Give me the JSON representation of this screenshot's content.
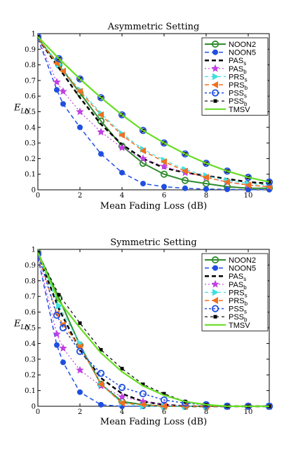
{
  "chart_data": [
    {
      "type": "line",
      "title": "Asymmetric Setting",
      "xlabel": "Mean Fading Loss (dB)",
      "ylabel": "E",
      "ylabel_sub": "LN",
      "xlim": [
        0,
        11
      ],
      "ylim": [
        0,
        1
      ],
      "xticks": [
        "0",
        "2",
        "4",
        "6",
        "8",
        "10"
      ],
      "yticks": [
        "0",
        "0.1",
        "0.2",
        "0.3",
        "0.4",
        "0.5",
        "0.6",
        "0.7",
        "0.8",
        "0.9",
        "1"
      ],
      "legend_position": "top-right",
      "series": [
        {
          "name": "NOON2",
          "sub": "",
          "color": "#2e8b2e",
          "dash": "",
          "marker": "circle",
          "fill": false,
          "width": 2,
          "x": [
            0,
            1,
            2,
            3,
            4,
            5,
            6,
            7,
            8,
            9,
            10,
            11
          ],
          "values": [
            0.97,
            0.8,
            0.62,
            0.44,
            0.28,
            0.17,
            0.1,
            0.06,
            0.04,
            0.02,
            0.01,
            0.01
          ]
        },
        {
          "name": "NOON5",
          "sub": "",
          "color": "#1f4fe0",
          "dash": "6,4",
          "marker": "dot",
          "fill": true,
          "width": 1.5,
          "x": [
            0,
            0.9,
            1.2,
            2,
            3,
            4,
            5,
            6,
            7,
            8,
            9,
            10,
            11
          ],
          "values": [
            0.97,
            0.64,
            0.55,
            0.4,
            0.23,
            0.11,
            0.04,
            0.02,
            0.01,
            0.005,
            0.003,
            0.001,
            0.001
          ]
        },
        {
          "name": "PAS",
          "sub": "s",
          "color": "#000000",
          "dash": "6,4",
          "marker": "",
          "fill": false,
          "width": 2.5,
          "x": [
            0,
            1,
            2,
            3,
            4,
            5,
            6,
            7,
            8,
            9,
            10,
            11
          ],
          "values": [
            0.97,
            0.78,
            0.59,
            0.42,
            0.29,
            0.2,
            0.14,
            0.11,
            0.09,
            0.07,
            0.05,
            0.04
          ]
        },
        {
          "name": "PAS",
          "sub": "b",
          "color": "#c040e0",
          "dash": "2,3",
          "marker": "star",
          "fill": true,
          "width": 1.2,
          "x": [
            0,
            0.9,
            1.2,
            2,
            3,
            4,
            5,
            6,
            7,
            8,
            9,
            10,
            11
          ],
          "values": [
            0.97,
            0.69,
            0.63,
            0.5,
            0.37,
            0.27,
            0.2,
            0.15,
            0.11,
            0.08,
            0.05,
            0.03,
            0.02
          ]
        },
        {
          "name": "PRS",
          "sub": "s",
          "color": "#40e0e0",
          "dash": "5,4",
          "marker": "tri-right",
          "fill": true,
          "width": 1.2,
          "x": [
            0,
            1,
            2,
            3,
            4,
            5,
            6,
            7,
            8,
            9,
            10,
            11
          ],
          "values": [
            0.97,
            0.8,
            0.64,
            0.49,
            0.36,
            0.26,
            0.19,
            0.13,
            0.09,
            0.06,
            0.04,
            0.03
          ]
        },
        {
          "name": "PRS",
          "sub": "b",
          "color": "#f07020",
          "dash": "6,4",
          "marker": "tri-left",
          "fill": true,
          "width": 1.5,
          "x": [
            0,
            0.9,
            1.2,
            2,
            3,
            4,
            5,
            6,
            7,
            8,
            9,
            10,
            11
          ],
          "values": [
            0.97,
            0.81,
            0.76,
            0.63,
            0.48,
            0.35,
            0.25,
            0.18,
            0.12,
            0.08,
            0.05,
            0.03,
            0.02
          ]
        },
        {
          "name": "PSS",
          "sub": "s",
          "color": "#1f4fe0",
          "dash": "3,3",
          "marker": "circle",
          "fill": false,
          "width": 1.5,
          "x": [
            0,
            1,
            2,
            3,
            4,
            5,
            6,
            7,
            8,
            9,
            10,
            11
          ],
          "values": [
            0.98,
            0.84,
            0.71,
            0.59,
            0.48,
            0.38,
            0.3,
            0.23,
            0.17,
            0.12,
            0.08,
            0.05
          ]
        },
        {
          "name": "PSS",
          "sub": "b",
          "color": "#000000",
          "dash": "4,4",
          "marker": "square",
          "fill": true,
          "width": 1.2,
          "x": [
            0,
            1,
            2,
            3,
            4,
            5,
            6,
            7,
            8,
            9,
            10,
            11
          ],
          "values": [
            0.98,
            0.84,
            0.71,
            0.59,
            0.48,
            0.38,
            0.3,
            0.23,
            0.17,
            0.12,
            0.08,
            0.05
          ]
        },
        {
          "name": "TMSV",
          "sub": "",
          "color": "#66dd22",
          "dash": "",
          "marker": "",
          "fill": false,
          "width": 2.2,
          "x": [
            0,
            1,
            2,
            3,
            4,
            5,
            6,
            7,
            8,
            9,
            10,
            11
          ],
          "values": [
            0.98,
            0.84,
            0.71,
            0.59,
            0.48,
            0.38,
            0.3,
            0.23,
            0.17,
            0.12,
            0.08,
            0.05
          ]
        }
      ]
    },
    {
      "type": "line",
      "title": "Symmetric Setting",
      "xlabel": "Mean Fading Loss (dB)",
      "ylabel": "E",
      "ylabel_sub": "LN",
      "xlim": [
        0,
        11
      ],
      "ylim": [
        0,
        1
      ],
      "xticks": [
        "0",
        "2",
        "4",
        "6",
        "8",
        "10"
      ],
      "yticks": [
        "0",
        "0.1",
        "0.2",
        "0.3",
        "0.4",
        "0.5",
        "0.6",
        "0.7",
        "0.8",
        "0.9",
        "1"
      ],
      "legend_position": "top-right",
      "series": [
        {
          "name": "NOON2",
          "sub": "",
          "color": "#2e8b2e",
          "dash": "",
          "marker": "circle",
          "fill": false,
          "width": 2,
          "x": [
            0,
            1,
            2,
            3,
            4,
            5,
            6,
            7,
            8,
            9,
            10,
            11
          ],
          "values": [
            0.98,
            0.69,
            0.39,
            0.14,
            0.03,
            0.01,
            0.0,
            0.0,
            0.0,
            0.0,
            0.0,
            0.0
          ]
        },
        {
          "name": "NOON5",
          "sub": "",
          "color": "#1f4fe0",
          "dash": "6,4",
          "marker": "dot",
          "fill": true,
          "width": 1.5,
          "x": [
            0,
            0.9,
            1.2,
            2,
            3,
            4,
            5,
            6,
            7,
            8,
            9,
            10,
            11
          ],
          "values": [
            0.95,
            0.39,
            0.28,
            0.09,
            0.01,
            0.0,
            0.0,
            0.0,
            0.0,
            0.0,
            0.0,
            0.0,
            0.0
          ]
        },
        {
          "name": "PAS",
          "sub": "s",
          "color": "#000000",
          "dash": "6,4",
          "marker": "",
          "fill": false,
          "width": 2.5,
          "x": [
            0,
            1,
            2,
            3,
            4,
            5,
            6,
            7,
            8,
            9,
            10,
            11
          ],
          "values": [
            0.97,
            0.62,
            0.36,
            0.18,
            0.08,
            0.03,
            0.01,
            0.0,
            0.0,
            0.0,
            0.0,
            0.0
          ]
        },
        {
          "name": "PAS",
          "sub": "b",
          "color": "#c040e0",
          "dash": "2,3",
          "marker": "star",
          "fill": true,
          "width": 1.2,
          "x": [
            0,
            0.9,
            1.2,
            2,
            3,
            4,
            5,
            6,
            7,
            8,
            9,
            10,
            11
          ],
          "values": [
            0.96,
            0.46,
            0.37,
            0.23,
            0.13,
            0.06,
            0.03,
            0.01,
            0.0,
            0.0,
            0.0,
            0.0,
            0.0
          ]
        },
        {
          "name": "PRS",
          "sub": "s",
          "color": "#40e0e0",
          "dash": "5,4",
          "marker": "tri-right",
          "fill": true,
          "width": 1.2,
          "x": [
            0,
            1,
            2,
            3,
            4,
            5,
            6,
            7,
            8,
            9,
            10,
            11
          ],
          "values": [
            0.97,
            0.64,
            0.4,
            0.14,
            0.02,
            0.0,
            0.0,
            0.0,
            0.0,
            0.0,
            0.0,
            0.0
          ]
        },
        {
          "name": "PRS",
          "sub": "b",
          "color": "#f07020",
          "dash": "6,4",
          "marker": "tri-left",
          "fill": true,
          "width": 1.5,
          "x": [
            0,
            0.9,
            1.2,
            2,
            3,
            4,
            5,
            6,
            7,
            8,
            9,
            10,
            11
          ],
          "values": [
            0.97,
            0.59,
            0.52,
            0.38,
            0.14,
            0.02,
            0.01,
            0.0,
            0.0,
            0.0,
            0.0,
            0.0,
            0.0
          ]
        },
        {
          "name": "PSS",
          "sub": "s",
          "color": "#1f4fe0",
          "dash": "3,3",
          "marker": "circle",
          "fill": false,
          "width": 1.5,
          "x": [
            0,
            0.9,
            1.2,
            2,
            3,
            4,
            5,
            6,
            7,
            8,
            9,
            10,
            11
          ],
          "values": [
            0.97,
            0.58,
            0.5,
            0.35,
            0.21,
            0.12,
            0.08,
            0.04,
            0.02,
            0.01,
            0.0,
            0.0,
            0.0
          ]
        },
        {
          "name": "PSS",
          "sub": "b",
          "color": "#000000",
          "dash": "4,4",
          "marker": "square",
          "fill": true,
          "width": 1.2,
          "x": [
            0,
            1,
            2,
            3,
            4,
            5,
            6,
            7,
            8,
            9,
            10,
            11
          ],
          "values": [
            0.98,
            0.71,
            0.53,
            0.36,
            0.24,
            0.14,
            0.08,
            0.03,
            0.01,
            0.0,
            0.0,
            0.0
          ]
        },
        {
          "name": "TMSV",
          "sub": "",
          "color": "#66dd22",
          "dash": "",
          "marker": "",
          "fill": false,
          "width": 2.2,
          "x": [
            0,
            1,
            2,
            3,
            4,
            5,
            6,
            7,
            8,
            9,
            10,
            11
          ],
          "values": [
            0.98,
            0.67,
            0.5,
            0.34,
            0.22,
            0.13,
            0.07,
            0.03,
            0.01,
            0.0,
            0.0,
            0.0
          ]
        }
      ]
    }
  ]
}
